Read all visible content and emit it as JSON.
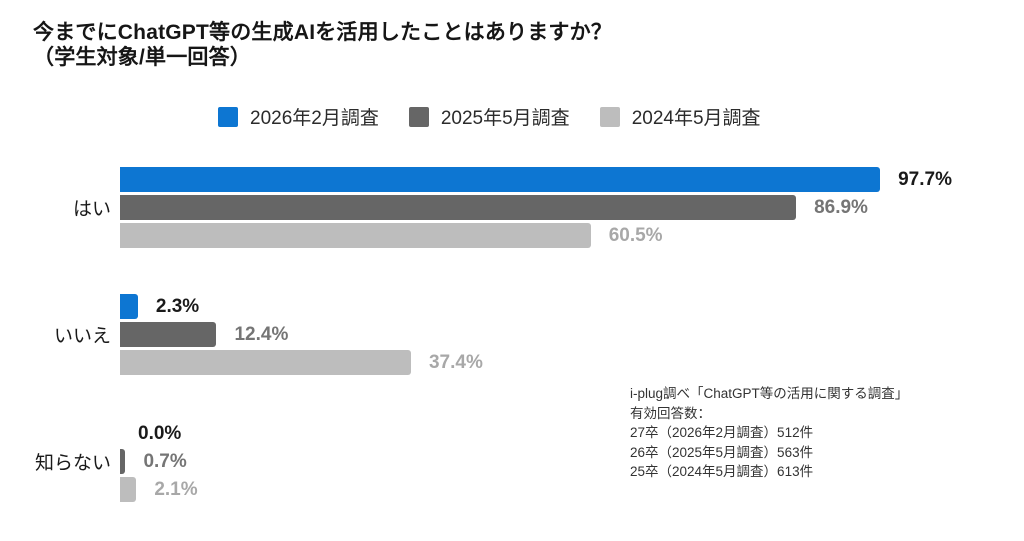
{
  "title": {
    "line1": "今までにChatGPT等の生成AIを活用したことはありますか？",
    "line2": "（学生対象/単一回答）"
  },
  "chart_data": {
    "type": "bar",
    "orientation": "horizontal",
    "categories": [
      "はい",
      "いいえ",
      "知らない"
    ],
    "series": [
      {
        "name": "2026年2月調査",
        "color": "#0d76d2",
        "label_color": "#1a1a1a",
        "values": [
          97.7,
          2.3,
          0.0
        ]
      },
      {
        "name": "2025年5月調査",
        "color": "#666666",
        "label_color": "#757575",
        "values": [
          86.9,
          12.4,
          0.7
        ]
      },
      {
        "name": "2024年5月調査",
        "color": "#bdbdbd",
        "label_color": "#a8a8a8",
        "values": [
          60.5,
          37.4,
          2.1
        ]
      }
    ],
    "xlim": [
      0,
      100
    ],
    "value_suffix": "%",
    "legend_position": "top",
    "grid": false
  },
  "annotation": {
    "lines": [
      "i-plug調べ「ChatGPT等の活用に関する調査」",
      "有効回答数：",
      "27卒（2026年2月調査）512件",
      "26卒（2025年5月調査）563件",
      "25卒（2024年5月調査）613件"
    ]
  }
}
